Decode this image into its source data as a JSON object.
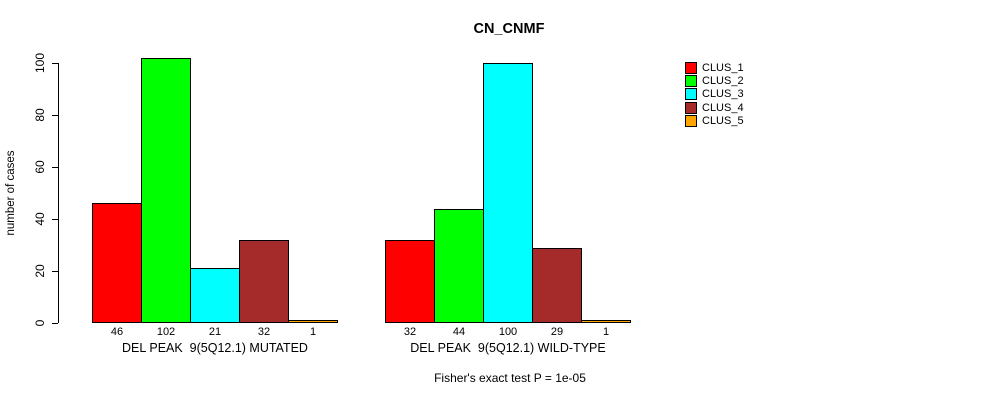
{
  "chart_data": {
    "type": "bar",
    "title": "CN_CNMF",
    "ylabel": "number of cases",
    "xlabel": "",
    "ylim": [
      0,
      100
    ],
    "yticks": [
      0,
      20,
      40,
      60,
      80,
      100
    ],
    "grid": false,
    "legend_position": "right",
    "series_names": [
      "CLUS_1",
      "CLUS_2",
      "CLUS_3",
      "CLUS_4",
      "CLUS_5"
    ],
    "series_colors": [
      "#FF0000",
      "#00FF00",
      "#00FFFF",
      "#A52A2A",
      "#FFA500"
    ],
    "groups": [
      {
        "label": "DEL PEAK  9(5Q12.1) MUTATED",
        "values": [
          46,
          102,
          21,
          32,
          1
        ]
      },
      {
        "label": "DEL PEAK  9(5Q12.1) WILD-TYPE",
        "values": [
          32,
          44,
          100,
          29,
          1
        ]
      }
    ],
    "annotation": "Fisher's exact test P = 1e-05"
  }
}
